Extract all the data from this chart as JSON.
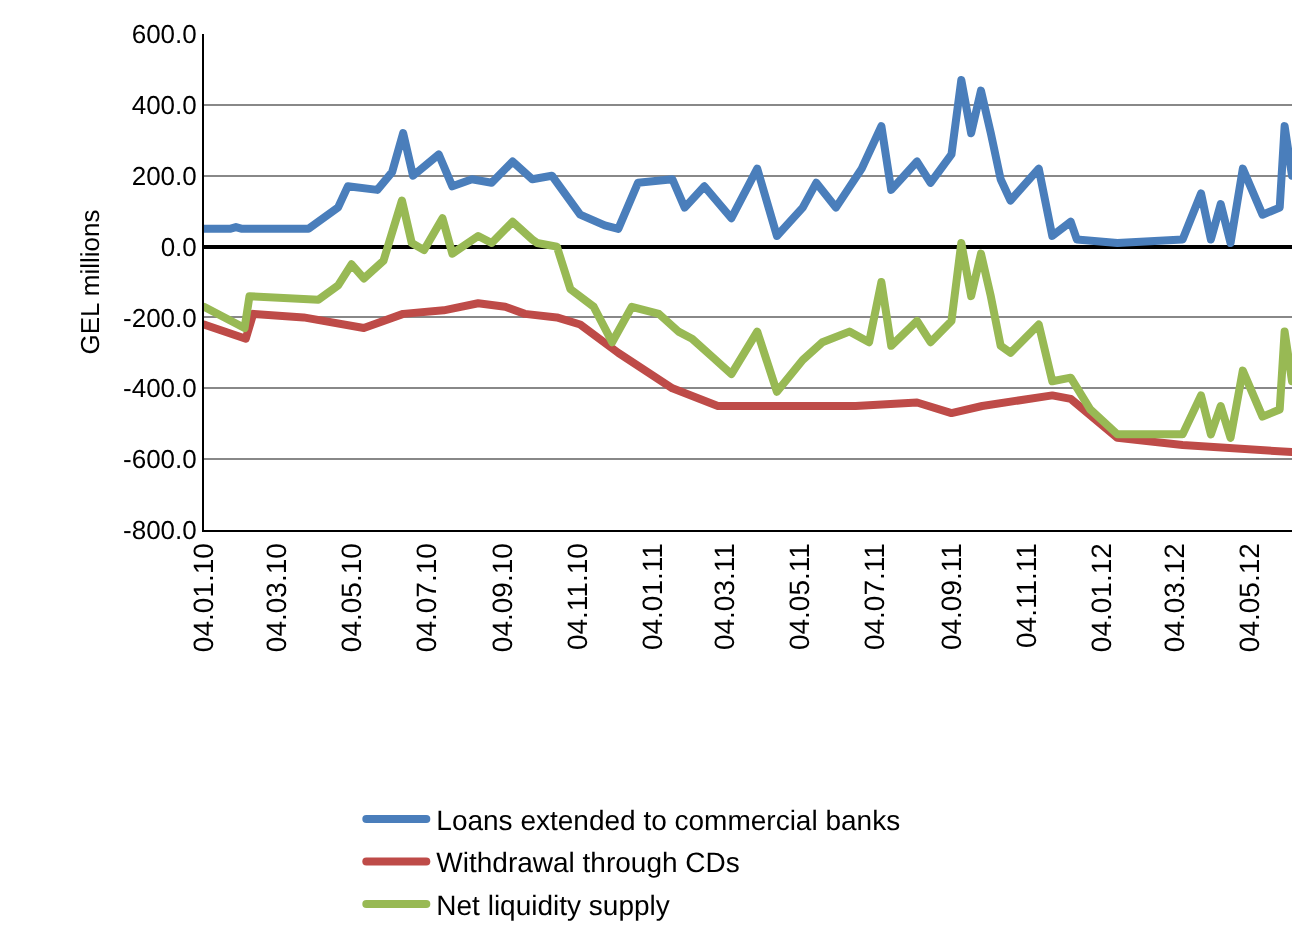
{
  "chart_data": {
    "type": "line",
    "ylabel": "GEL millions",
    "xlim": [
      "2010-01-04",
      "2012-06-07"
    ],
    "xticks": [
      {
        "value": "2010-01-04",
        "label": "04.01.10"
      },
      {
        "value": "2010-03-04",
        "label": "04.03.10"
      },
      {
        "value": "2010-05-04",
        "label": "04.05.10"
      },
      {
        "value": "2010-07-04",
        "label": "04.07.10"
      },
      {
        "value": "2010-09-04",
        "label": "04.09.10"
      },
      {
        "value": "2010-11-04",
        "label": "04.11.10"
      },
      {
        "value": "2011-01-04",
        "label": "04.01.11"
      },
      {
        "value": "2011-03-04",
        "label": "04.03.11"
      },
      {
        "value": "2011-05-04",
        "label": "04.05.11"
      },
      {
        "value": "2011-07-04",
        "label": "04.07.11"
      },
      {
        "value": "2011-09-04",
        "label": "04.09.11"
      },
      {
        "value": "2011-11-04",
        "label": "04.11.11"
      },
      {
        "value": "2012-01-04",
        "label": "04.01.12"
      },
      {
        "value": "2012-03-04",
        "label": "04.03.12"
      },
      {
        "value": "2012-05-04",
        "label": "04.05.12"
      }
    ],
    "ylim": [
      -800,
      600
    ],
    "yticks": [
      {
        "value": -800,
        "label": "-800.0"
      },
      {
        "value": -600,
        "label": "-600.0"
      },
      {
        "value": -400,
        "label": "-400.0"
      },
      {
        "value": -200,
        "label": "-200.0"
      },
      {
        "value": 0,
        "label": "0.0"
      },
      {
        "value": 200,
        "label": "200.0"
      },
      {
        "value": 400,
        "label": "400.0"
      },
      {
        "value": 600,
        "label": "600.0"
      }
    ],
    "grid": "y",
    "legend": "bottom",
    "marker": "none",
    "line_style": "solid",
    "series": [
      {
        "name": "Loans extended to commercial banks",
        "color": "#4a7ebb",
        "x": [
          "2010-01-04",
          "2010-01-25",
          "2010-01-30",
          "2010-02-04",
          "2010-03-30",
          "2010-04-23",
          "2010-05-01",
          "2010-05-25",
          "2010-06-06",
          "2010-06-15",
          "2010-06-23",
          "2010-07-14",
          "2010-07-25",
          "2010-08-10",
          "2010-08-26",
          "2010-09-12",
          "2010-09-28",
          "2010-10-14",
          "2010-11-06",
          "2010-11-26",
          "2010-12-07",
          "2010-12-23",
          "2011-01-20",
          "2011-01-30",
          "2011-02-15",
          "2011-03-09",
          "2011-03-30",
          "2011-04-15",
          "2011-05-06",
          "2011-05-17",
          "2011-06-02",
          "2011-06-23",
          "2011-07-09",
          "2011-07-17",
          "2011-08-07",
          "2011-08-18",
          "2011-09-04",
          "2011-09-12",
          "2011-09-20",
          "2011-09-28",
          "2011-10-06",
          "2011-10-14",
          "2011-10-22",
          "2011-11-14",
          "2011-11-25",
          "2011-12-10",
          "2011-12-15",
          "2012-01-17",
          "2012-03-10",
          "2012-03-25",
          "2012-04-02",
          "2012-04-10",
          "2012-04-18",
          "2012-04-28",
          "2012-05-14",
          "2012-05-28",
          "2012-06-01",
          "2012-06-07"
        ],
        "values": [
          50,
          50,
          55,
          50,
          50,
          110,
          170,
          160,
          210,
          320,
          200,
          260,
          170,
          190,
          180,
          240,
          190,
          200,
          90,
          60,
          50,
          180,
          190,
          110,
          170,
          80,
          220,
          30,
          110,
          180,
          110,
          220,
          340,
          160,
          240,
          180,
          260,
          470,
          320,
          440,
          320,
          190,
          130,
          220,
          30,
          70,
          20,
          10,
          20,
          150,
          20,
          120,
          10,
          220,
          90,
          110,
          340,
          200
        ]
      },
      {
        "name": "Withdrawal through CDs",
        "color": "#be4b48",
        "x": [
          "2010-01-04",
          "2010-02-07",
          "2010-02-13",
          "2010-03-26",
          "2010-05-14",
          "2010-06-15",
          "2010-07-18",
          "2010-08-15",
          "2010-09-06",
          "2010-09-22",
          "2010-10-18",
          "2010-11-06",
          "2010-12-07",
          "2011-01-20",
          "2011-02-26",
          "2011-03-13",
          "2011-06-18",
          "2011-08-07",
          "2011-09-04",
          "2011-09-29",
          "2011-11-25",
          "2011-12-10",
          "2012-01-17",
          "2012-03-10",
          "2012-06-07"
        ],
        "values": [
          -220,
          -260,
          -190,
          -200,
          -230,
          -190,
          -180,
          -160,
          -170,
          -190,
          -200,
          -220,
          -300,
          -400,
          -450,
          -450,
          -450,
          -440,
          -470,
          -450,
          -420,
          -430,
          -540,
          -560,
          -580
        ]
      },
      {
        "name": "Net liquidity supply",
        "color": "#98b954",
        "x": [
          "2010-01-04",
          "2010-02-06",
          "2010-02-10",
          "2010-04-07",
          "2010-04-23",
          "2010-05-04",
          "2010-05-14",
          "2010-05-30",
          "2010-06-14",
          "2010-06-22",
          "2010-07-02",
          "2010-07-17",
          "2010-07-25",
          "2010-08-15",
          "2010-08-26",
          "2010-09-12",
          "2010-09-28",
          "2010-10-02",
          "2010-10-18",
          "2010-10-29",
          "2010-11-17",
          "2010-12-02",
          "2010-12-18",
          "2011-01-09",
          "2011-01-25",
          "2011-02-05",
          "2011-02-21",
          "2011-03-09",
          "2011-03-30",
          "2011-04-15",
          "2011-05-06",
          "2011-05-22",
          "2011-06-13",
          "2011-06-29",
          "2011-07-09",
          "2011-07-17",
          "2011-08-07",
          "2011-08-18",
          "2011-09-04",
          "2011-09-12",
          "2011-09-20",
          "2011-09-28",
          "2011-10-06",
          "2011-10-14",
          "2011-10-22",
          "2011-11-14",
          "2011-11-25",
          "2011-12-10",
          "2011-12-26",
          "2012-01-17",
          "2012-03-10",
          "2012-03-25",
          "2012-04-02",
          "2012-04-10",
          "2012-04-18",
          "2012-04-28",
          "2012-05-14",
          "2012-05-28",
          "2012-06-01",
          "2012-06-07"
        ],
        "values": [
          -170,
          -230,
          -140,
          -150,
          -110,
          -50,
          -90,
          -40,
          130,
          10,
          -10,
          80,
          -20,
          30,
          10,
          70,
          20,
          10,
          0,
          -120,
          -170,
          -270,
          -170,
          -190,
          -240,
          -260,
          -310,
          -360,
          -240,
          -410,
          -320,
          -270,
          -240,
          -270,
          -100,
          -280,
          -210,
          -270,
          -210,
          10,
          -140,
          -20,
          -140,
          -280,
          -300,
          -220,
          -380,
          -370,
          -460,
          -530,
          -530,
          -420,
          -530,
          -450,
          -540,
          -350,
          -480,
          -460,
          -240,
          -380
        ]
      }
    ]
  }
}
